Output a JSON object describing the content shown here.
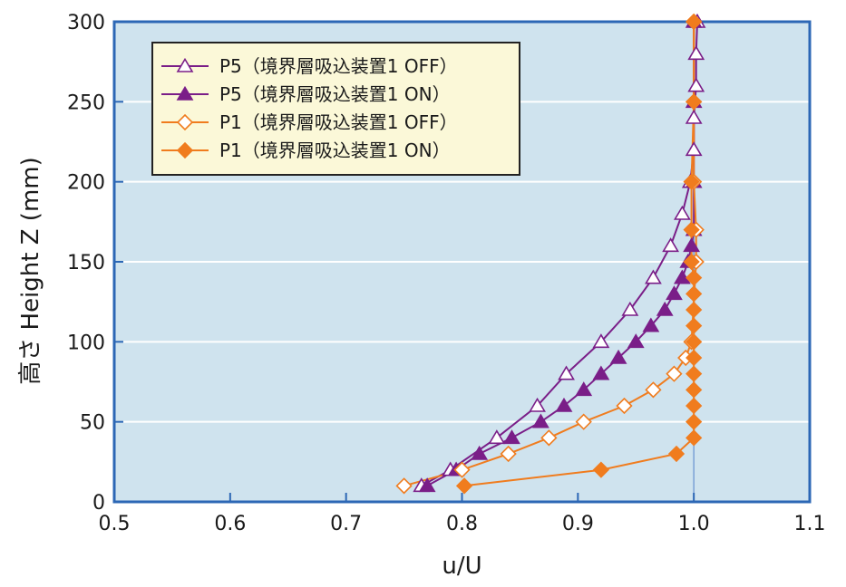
{
  "chart_data": {
    "type": "line",
    "xlabel": "u/U",
    "ylabel": "高さ Height Z (mm)",
    "xlim": [
      0.5,
      1.1
    ],
    "ylim": [
      0,
      300
    ],
    "x_ticks": [
      "0.5",
      "0.6",
      "0.7",
      "0.8",
      "0.9",
      "1.0",
      "1.1"
    ],
    "y_ticks": [
      "0",
      "50",
      "100",
      "150",
      "200",
      "250",
      "300"
    ],
    "grid": "horizontal",
    "reference_line_x": 1.0,
    "legend_position": "top-left",
    "colors": {
      "plot_background": "#cfe3ee",
      "grid": "#ffffff",
      "axis": "#2c67b5",
      "purple": "#7a1e88",
      "orange": "#f07c1e"
    },
    "series": [
      {
        "name": "P5（境界層吸込装置1 OFF）",
        "color": "#7a1e88",
        "marker": "triangle",
        "filled": false,
        "points": [
          [
            0.765,
            10
          ],
          [
            0.79,
            20
          ],
          [
            0.83,
            40
          ],
          [
            0.865,
            60
          ],
          [
            0.89,
            80
          ],
          [
            0.92,
            100
          ],
          [
            0.945,
            120
          ],
          [
            0.965,
            140
          ],
          [
            0.98,
            160
          ],
          [
            0.99,
            180
          ],
          [
            0.997,
            200
          ],
          [
            1.0,
            220
          ],
          [
            1.0,
            240
          ],
          [
            1.002,
            260
          ],
          [
            1.002,
            280
          ],
          [
            1.003,
            300
          ]
        ]
      },
      {
        "name": "P5（境界層吸込装置1 ON）",
        "color": "#7a1e88",
        "marker": "triangle",
        "filled": true,
        "points": [
          [
            0.77,
            10
          ],
          [
            0.795,
            20
          ],
          [
            0.815,
            30
          ],
          [
            0.843,
            40
          ],
          [
            0.868,
            50
          ],
          [
            0.888,
            60
          ],
          [
            0.905,
            70
          ],
          [
            0.92,
            80
          ],
          [
            0.935,
            90
          ],
          [
            0.95,
            100
          ],
          [
            0.963,
            110
          ],
          [
            0.975,
            120
          ],
          [
            0.983,
            130
          ],
          [
            0.99,
            140
          ],
          [
            0.995,
            150
          ],
          [
            0.998,
            160
          ],
          [
            1.0,
            170
          ],
          [
            1.0,
            200
          ],
          [
            1.0,
            250
          ],
          [
            1.0,
            300
          ]
        ]
      },
      {
        "name": "P1（境界層吸込装置1 OFF）",
        "color": "#f07c1e",
        "marker": "diamond",
        "filled": false,
        "points": [
          [
            0.75,
            10
          ],
          [
            0.8,
            20
          ],
          [
            0.84,
            30
          ],
          [
            0.875,
            40
          ],
          [
            0.905,
            50
          ],
          [
            0.94,
            60
          ],
          [
            0.965,
            70
          ],
          [
            0.983,
            80
          ],
          [
            0.993,
            90
          ],
          [
            0.998,
            100
          ],
          [
            1.002,
            150
          ],
          [
            1.002,
            170
          ],
          [
            1.0,
            200
          ],
          [
            1.0,
            250
          ],
          [
            1.0,
            300
          ]
        ]
      },
      {
        "name": "P1（境界層吸込装置1 ON）",
        "color": "#f07c1e",
        "marker": "diamond",
        "filled": true,
        "points": [
          [
            0.802,
            10
          ],
          [
            0.92,
            20
          ],
          [
            0.985,
            30
          ],
          [
            1.0,
            40
          ],
          [
            1.0,
            50
          ],
          [
            1.0,
            60
          ],
          [
            1.0,
            70
          ],
          [
            1.0,
            80
          ],
          [
            1.0,
            90
          ],
          [
            1.0,
            100
          ],
          [
            1.0,
            110
          ],
          [
            1.0,
            120
          ],
          [
            1.0,
            130
          ],
          [
            1.0,
            140
          ],
          [
            0.998,
            150
          ],
          [
            0.998,
            170
          ],
          [
            0.998,
            200
          ],
          [
            1.0,
            250
          ],
          [
            1.0,
            300
          ]
        ]
      }
    ]
  }
}
